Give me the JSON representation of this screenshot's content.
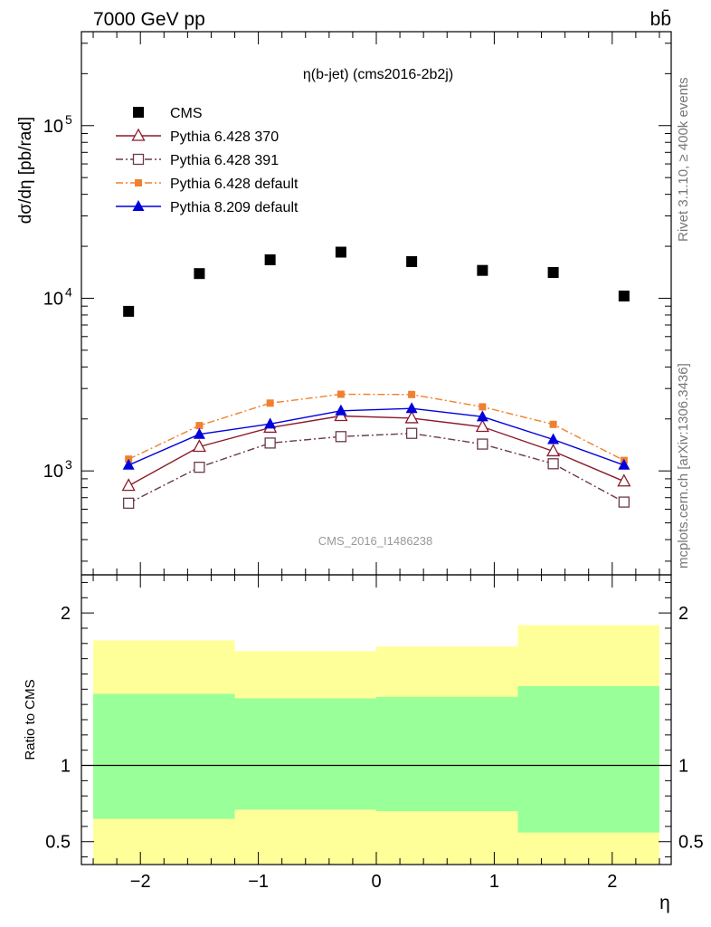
{
  "header": {
    "energy_label": "7000 GeV pp",
    "process_label": "bb̄"
  },
  "side_labels": {
    "rivet": "Rivet 3.1.10, ≥ 400k events",
    "mcplots": "mcplots.cern.ch [arXiv:1306.3436]"
  },
  "colors": {
    "cms": "#000000",
    "pythia6_370": "#8b1a2b",
    "pythia6_391": "#6b3a4a",
    "pythia6_default": "#f08030",
    "pythia8_default": "#0000dd",
    "band_inner": "#99ff99",
    "band_outer": "#ffff99"
  },
  "chart_data": [
    {
      "type": "line",
      "title": "η(b-jet) (cms2016-2b2j)",
      "watermark": "CMS_2016_I1486238",
      "ylabel": "dσ/dη [pb/rad]",
      "xlabel": "",
      "yscale": "log",
      "xlim": [
        -2.5,
        2.5
      ],
      "ylim": [
        250,
        350000
      ],
      "x": [
        -2.1,
        -1.5,
        -0.9,
        -0.3,
        0.3,
        0.9,
        1.5,
        2.1
      ],
      "y_ticks": [
        {
          "value": 1000,
          "base": "10",
          "exp": "3"
        },
        {
          "value": 10000,
          "base": "10",
          "exp": "4"
        },
        {
          "value": 100000,
          "base": "10",
          "exp": "5"
        }
      ],
      "legend_position": "top-left",
      "series": [
        {
          "name": "CMS",
          "key": "cms",
          "marker": "square",
          "line": "none",
          "values": [
            8400,
            13900,
            16700,
            18500,
            16300,
            14500,
            14100,
            10300
          ]
        },
        {
          "name": "Pythia 6.428 370",
          "key": "pythia6_370",
          "marker": "triangle-open",
          "line": "solid",
          "values": [
            820,
            1380,
            1780,
            2080,
            2020,
            1800,
            1300,
            870
          ]
        },
        {
          "name": "Pythia 6.428 391",
          "key": "pythia6_391",
          "marker": "square-open",
          "line": "dashdot",
          "values": [
            650,
            1050,
            1450,
            1580,
            1650,
            1430,
            1100,
            660
          ]
        },
        {
          "name": "Pythia 6.428 default",
          "key": "pythia6_default",
          "marker": "square-small",
          "line": "dashdot",
          "values": [
            1170,
            1830,
            2470,
            2780,
            2770,
            2350,
            1860,
            1150
          ]
        },
        {
          "name": "Pythia 8.209 default",
          "key": "pythia8_default",
          "marker": "triangle",
          "line": "solid",
          "values": [
            1080,
            1630,
            1870,
            2230,
            2300,
            2060,
            1520,
            1080
          ]
        }
      ]
    },
    {
      "type": "area",
      "ylabel": "Ratio to CMS",
      "xlabel": "η",
      "xlim": [
        -2.5,
        2.5
      ],
      "ylim": [
        0.35,
        2.25
      ],
      "x_ticks": [
        "−2",
        "−1",
        "0",
        "1",
        "2"
      ],
      "x_tick_values": [
        -2,
        -1,
        0,
        1,
        2
      ],
      "y_ticks": [
        "0.5",
        "1",
        "2"
      ],
      "y_tick_values": [
        0.5,
        1,
        2
      ],
      "bin_edges": [
        -2.4,
        -1.2,
        0,
        1.2,
        2.4
      ],
      "inner_band": {
        "low": [
          0.65,
          0.71,
          0.7,
          0.56
        ],
        "high": [
          1.47,
          1.44,
          1.45,
          1.52
        ]
      },
      "outer_band": {
        "low": [
          0.35,
          0.35,
          0.35,
          0.35
        ],
        "high": [
          1.82,
          1.75,
          1.78,
          1.92
        ]
      },
      "reference_line": 1
    }
  ]
}
